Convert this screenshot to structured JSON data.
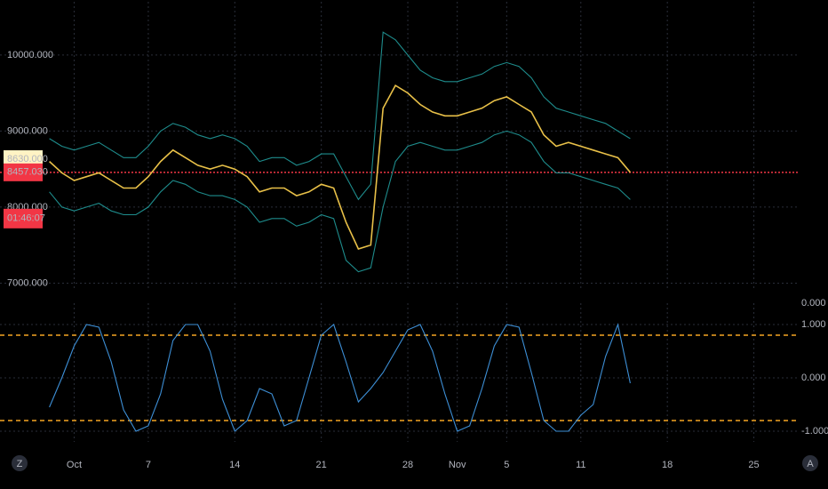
{
  "chart_data": [
    {
      "type": "line",
      "xlim": [
        -6,
        58.7
      ],
      "ylim": [
        6900,
        10700
      ],
      "yticks": [
        {
          "value": 7000,
          "label": "7000.000"
        },
        {
          "value": 8000,
          "label": "8000.000"
        },
        {
          "value": 9000,
          "label": "9000.000"
        },
        {
          "value": 10000,
          "label": "10000.000"
        }
      ],
      "grid": true,
      "markers": [
        {
          "value": 8630,
          "label": "8630.000",
          "color": "#fff3c4"
        },
        {
          "value": 8457.03,
          "label": "8457.030",
          "color": "#f23645"
        }
      ],
      "countdown": "01:46:07",
      "x": [
        -2,
        -1,
        0,
        1,
        2,
        3,
        4,
        5,
        6,
        7,
        8,
        9,
        10,
        11,
        12,
        13,
        14,
        15,
        16,
        17,
        18,
        19,
        20,
        21,
        22,
        23,
        24,
        25,
        26,
        27,
        28,
        29,
        30,
        31,
        32,
        33,
        34,
        35,
        36,
        37,
        38,
        39,
        40,
        41,
        42,
        43,
        44,
        45
      ],
      "series": [
        {
          "name": "upper",
          "color": "#1e8c8c",
          "values": [
            8900,
            8800,
            8750,
            8800,
            8850,
            8750,
            8650,
            8650,
            8800,
            9000,
            9100,
            9050,
            8950,
            8900,
            8950,
            8900,
            8800,
            8600,
            8650,
            8650,
            8550,
            8600,
            8700,
            8700,
            8400,
            8100,
            8300,
            10300,
            10200,
            10000,
            9800,
            9700,
            9650,
            9650,
            9700,
            9750,
            9850,
            9900,
            9850,
            9700,
            9450,
            9300,
            9250,
            9200,
            9150,
            9100,
            9000,
            8900
          ]
        },
        {
          "name": "lower",
          "color": "#1e8c8c",
          "values": [
            8200,
            8000,
            7950,
            8000,
            8050,
            7950,
            7900,
            7900,
            8000,
            8200,
            8350,
            8300,
            8200,
            8150,
            8150,
            8100,
            8000,
            7800,
            7850,
            7850,
            7750,
            7800,
            7900,
            7850,
            7300,
            7150,
            7200,
            8000,
            8600,
            8800,
            8850,
            8800,
            8750,
            8750,
            8800,
            8850,
            8950,
            9000,
            8950,
            8850,
            8600,
            8450,
            8450,
            8400,
            8350,
            8300,
            8250,
            8100
          ]
        },
        {
          "name": "price",
          "color": "#e8c048",
          "values": [
            8600,
            8450,
            8350,
            8400,
            8450,
            8350,
            8250,
            8250,
            8400,
            8600,
            8750,
            8650,
            8550,
            8500,
            8550,
            8500,
            8400,
            8200,
            8250,
            8250,
            8150,
            8200,
            8300,
            8250,
            7800,
            7450,
            7500,
            9300,
            9600,
            9500,
            9350,
            9250,
            9200,
            9200,
            9250,
            9300,
            9400,
            9450,
            9350,
            9250,
            8950,
            8800,
            8850,
            8800,
            8750,
            8700,
            8650,
            8457
          ]
        }
      ]
    },
    {
      "type": "line",
      "xlim": [
        -6,
        58.7
      ],
      "ylim": [
        -1.2,
        1.4
      ],
      "yticks": [
        {
          "value": -1,
          "label": "-1.000"
        },
        {
          "value": 0,
          "label": "0.000"
        },
        {
          "value": 1,
          "label": "1.000"
        }
      ],
      "top_label": "0.000",
      "levels": [
        0.8,
        -0.8
      ],
      "level_color": "#f5a623",
      "grid": true,
      "xticks": [
        {
          "value": 0,
          "label": "Oct"
        },
        {
          "value": 6,
          "label": "7"
        },
        {
          "value": 13,
          "label": "14"
        },
        {
          "value": 20,
          "label": "21"
        },
        {
          "value": 27,
          "label": "28"
        },
        {
          "value": 31,
          "label": "Nov"
        },
        {
          "value": 35,
          "label": "5"
        },
        {
          "value": 41,
          "label": "11"
        },
        {
          "value": 48,
          "label": "18"
        },
        {
          "value": 55,
          "label": "25"
        }
      ],
      "x": [
        -2,
        -1,
        0,
        1,
        2,
        3,
        4,
        5,
        6,
        7,
        8,
        9,
        10,
        11,
        12,
        13,
        14,
        15,
        16,
        17,
        18,
        19,
        20,
        21,
        22,
        23,
        24,
        25,
        26,
        27,
        28,
        29,
        30,
        31,
        32,
        33,
        34,
        35,
        36,
        37,
        38,
        39,
        40,
        41,
        42,
        43,
        44,
        45
      ],
      "series": [
        {
          "name": "oscillator",
          "color": "#3d8fd6",
          "values": [
            -0.55,
            0,
            0.6,
            1,
            0.95,
            0.3,
            -0.6,
            -1,
            -0.9,
            -0.3,
            0.7,
            1,
            1,
            0.5,
            -0.4,
            -1,
            -0.8,
            -0.2,
            -0.3,
            -0.9,
            -0.8,
            0,
            0.8,
            1,
            0.3,
            -0.45,
            -0.2,
            0.1,
            0.5,
            0.9,
            1,
            0.5,
            -0.3,
            -1,
            -0.9,
            -0.2,
            0.6,
            1,
            0.95,
            0.1,
            -0.8,
            -1,
            -1,
            -0.7,
            -0.5,
            0.4,
            1,
            -0.1
          ]
        }
      ]
    }
  ],
  "controls": [
    "Z",
    "A"
  ]
}
